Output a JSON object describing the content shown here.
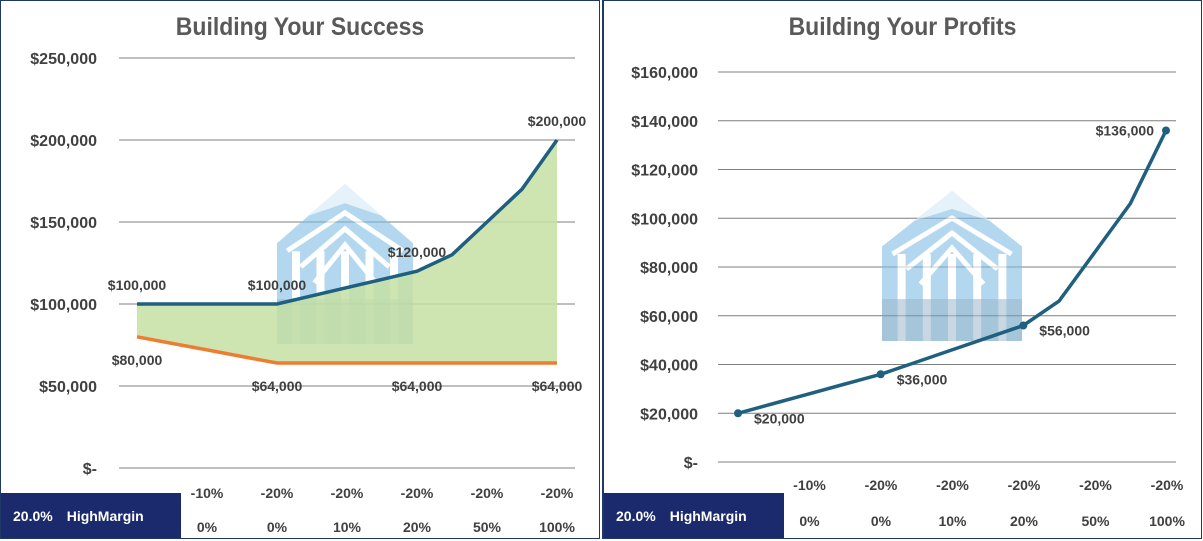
{
  "footer": {
    "percent": "20.0%",
    "label": "HighMargin"
  },
  "colors": {
    "revenue_line": "#1f5f7f",
    "cost_line": "#ed7d31",
    "area_fill": "#c5e0a5",
    "profit_line": "#1f5f7f",
    "footer_bg": "#1a2a6c"
  },
  "logo_icon": "building-arch-icon",
  "chart_data": [
    {
      "type": "area",
      "title": "Building Your Success",
      "categories_row1": [
        "",
        "-10%",
        "-20%",
        "-20%",
        "-20%",
        "-20%",
        "-20%"
      ],
      "categories_row2": [
        "",
        "0%",
        "0%",
        "10%",
        "20%",
        "50%",
        "100%"
      ],
      "x": [
        0,
        1,
        2,
        3,
        4,
        5,
        6,
        7,
        8,
        9,
        10,
        11,
        12
      ],
      "ylim": [
        0,
        250000
      ],
      "yticks": [
        {
          "value": 0,
          "label": "$-"
        },
        {
          "value": 50000,
          "label": "$50,000"
        },
        {
          "value": 100000,
          "label": "$100,000"
        },
        {
          "value": 150000,
          "label": "$150,000"
        },
        {
          "value": 200000,
          "label": "$200,000"
        },
        {
          "value": 250000,
          "label": "$250,000"
        }
      ],
      "series": [
        {
          "values": [
            100000,
            100000,
            100000,
            100000,
            100000,
            105000,
            110000,
            115000,
            120000,
            130000,
            150000,
            170000,
            200000
          ],
          "labels": [
            {
              "index": 0,
              "text": "$100,000",
              "pos": "above"
            },
            {
              "index": 4,
              "text": "$100,000",
              "pos": "above"
            },
            {
              "index": 8,
              "text": "$120,000",
              "pos": "above"
            },
            {
              "index": 12,
              "text": "$200,000",
              "pos": "above"
            }
          ]
        },
        {
          "values": [
            80000,
            76000,
            72000,
            68000,
            64000,
            64000,
            64000,
            64000,
            64000,
            64000,
            64000,
            64000,
            64000
          ],
          "labels": [
            {
              "index": 0,
              "text": "$80,000",
              "pos": "below"
            },
            {
              "index": 4,
              "text": "$64,000",
              "pos": "below"
            },
            {
              "index": 8,
              "text": "$64,000",
              "pos": "below"
            },
            {
              "index": 12,
              "text": "$64,000",
              "pos": "below"
            }
          ]
        }
      ],
      "grid": true
    },
    {
      "type": "line",
      "title": "Building Your Profits",
      "categories_row1": [
        "",
        "-10%",
        "-20%",
        "-20%",
        "-20%",
        "-20%",
        "-20%"
      ],
      "categories_row2": [
        "",
        "0%",
        "0%",
        "10%",
        "20%",
        "50%",
        "100%"
      ],
      "x": [
        0,
        1,
        2,
        3,
        4,
        5,
        6,
        7,
        8,
        9,
        10,
        11,
        12
      ],
      "ylim": [
        0,
        160000
      ],
      "yticks": [
        {
          "value": 0,
          "label": "$-"
        },
        {
          "value": 20000,
          "label": "$20,000"
        },
        {
          "value": 40000,
          "label": "$40,000"
        },
        {
          "value": 60000,
          "label": "$60,000"
        },
        {
          "value": 80000,
          "label": "$80,000"
        },
        {
          "value": 100000,
          "label": "$100,000"
        },
        {
          "value": 120000,
          "label": "$120,000"
        },
        {
          "value": 140000,
          "label": "$140,000"
        },
        {
          "value": 160000,
          "label": "$160,000"
        }
      ],
      "series": [
        {
          "values": [
            20000,
            24000,
            28000,
            32000,
            36000,
            41000,
            46000,
            51000,
            56000,
            66000,
            86000,
            106000,
            136000
          ],
          "markers": [
            0,
            4,
            8,
            12
          ],
          "labels": [
            {
              "index": 0,
              "text": "$20,000",
              "pos": "right"
            },
            {
              "index": 4,
              "text": "$36,000",
              "pos": "right"
            },
            {
              "index": 8,
              "text": "$56,000",
              "pos": "right"
            },
            {
              "index": 12,
              "text": "$136,000",
              "pos": "left"
            }
          ]
        }
      ],
      "grid": true
    }
  ]
}
